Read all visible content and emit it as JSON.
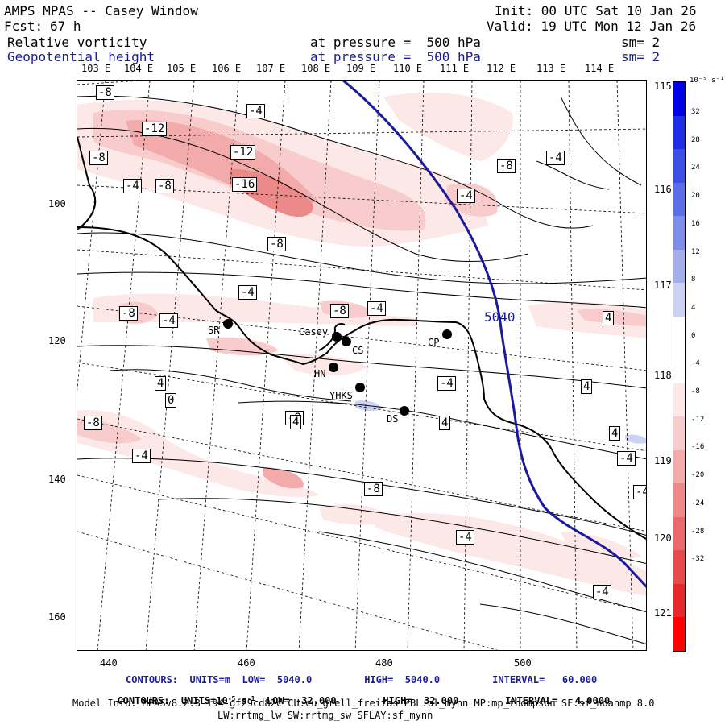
{
  "header": {
    "title": "AMPS MPAS -- Casey Window",
    "fcst_label": "Fcst:",
    "fcst_value": "67 h",
    "init": "Init: 00 UTC Sat 10 Jan 26",
    "valid": "Valid: 19 UTC Mon 12 Jan 26",
    "field1_name": "Relative vorticity",
    "field1_pressure": "at pressure =  500 hPa",
    "field1_sm": "sm= 2",
    "field2_name": "Geopotential height",
    "field2_pressure": "at pressure =  500 hPa",
    "field2_sm": "sm= 2"
  },
  "longitude_labels": [
    "103 E",
    "104 E",
    "105 E",
    "106 E",
    "107 E",
    "108 E",
    "109 E",
    "110 E",
    "111 E",
    "112 E",
    "113 E",
    "114 E"
  ],
  "right_labels": [
    "115 E",
    "116 E",
    "117 E",
    "118 E",
    "119 E",
    "120 E",
    "121 E"
  ],
  "y_axis": [
    "100",
    "120",
    "140",
    "160"
  ],
  "x_axis": [
    "440",
    "460",
    "480",
    "500"
  ],
  "colorbar": {
    "unit": "10⁻⁵ s⁻¹",
    "ticks": [
      "32",
      "28",
      "24",
      "20",
      "16",
      "12",
      "8",
      "4",
      "0",
      "-4",
      "-8",
      "-12",
      "-16",
      "-20",
      "-24",
      "-28",
      "-32"
    ],
    "colors": [
      "#0000e6",
      "#1e2ee6",
      "#3b4ee6",
      "#5a6ee6",
      "#7e8ee6",
      "#a4aeea",
      "#ccd2f2",
      "#ffffff",
      "#ffffff",
      "#fde8e8",
      "#f8cccc",
      "#f2aaaa",
      "#ec8a8a",
      "#e86a6a",
      "#e64a4a",
      "#e62828",
      "#ff0000"
    ]
  },
  "contour_labels": [
    "-8",
    "-4",
    "-12",
    "-8",
    "-4",
    "-8",
    "-12",
    "-16",
    "-4",
    "-8",
    "-4",
    "-8",
    "-4",
    "-8",
    "-4",
    "-8",
    "-4",
    "4",
    "4",
    "-8",
    "-4",
    "4",
    "4",
    "-4",
    "-8",
    "4",
    "4",
    "-4",
    "-4",
    "-4",
    "-4",
    "0",
    "-8"
  ],
  "height_label": "5040",
  "stations": [
    "SR",
    "Casey",
    "CS",
    "CP",
    "HN",
    "YHKS",
    "DS"
  ],
  "footer": {
    "line1": "CONTOURS:  UNITS=m  LOW=  5040.0         HIGH=  5040.0         INTERVAL=   60.000",
    "line2_a": "CONTOURS:  UNITS=10",
    "line2_b": " s",
    "line2_c": "  LOW= -32.000        HIGH=  32.000        INTERVAL=   4.0000",
    "line3": "Model Info: MPASv8.2.3-194-gf29cd82c CU:cu_grell_freitas PBL:bl_mynn MP:mp_thompson SF:sf_noahmp 8.0",
    "line4": "LW:rrtmg_lw SW:rrtmg_sw SFLAY:sf_mynn"
  }
}
